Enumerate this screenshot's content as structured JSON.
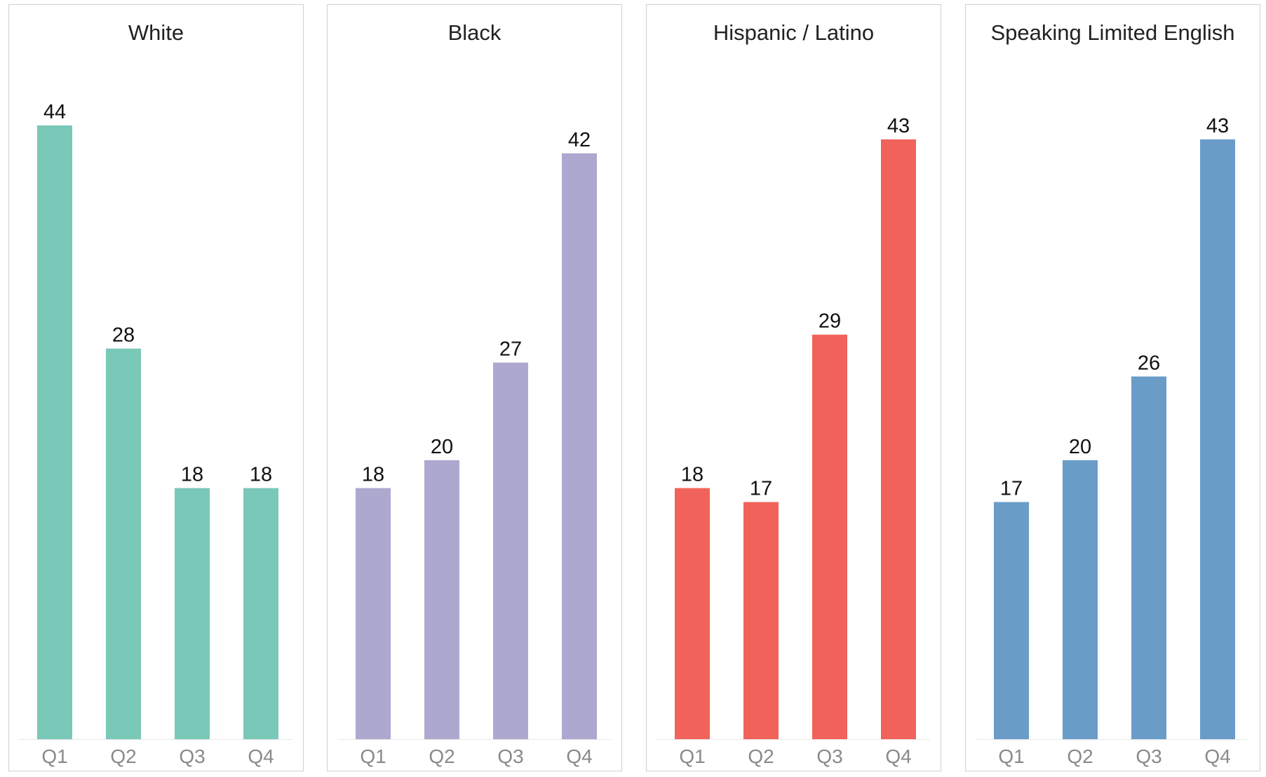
{
  "chart_data": [
    {
      "type": "bar",
      "title": "White",
      "categories": [
        "Q1",
        "Q2",
        "Q3",
        "Q4"
      ],
      "values": [
        44,
        28,
        18,
        18
      ],
      "color": "#7ac8b8",
      "ylim": [
        0,
        44
      ]
    },
    {
      "type": "bar",
      "title": "Black",
      "categories": [
        "Q1",
        "Q2",
        "Q3",
        "Q4"
      ],
      "values": [
        18,
        20,
        27,
        42
      ],
      "color": "#ada8cf",
      "ylim": [
        0,
        44
      ]
    },
    {
      "type": "bar",
      "title": "Hispanic / Latino",
      "categories": [
        "Q1",
        "Q2",
        "Q3",
        "Q4"
      ],
      "values": [
        18,
        17,
        29,
        43
      ],
      "color": "#f1635a",
      "ylim": [
        0,
        44
      ]
    },
    {
      "type": "bar",
      "title": "Speaking Limited English",
      "categories": [
        "Q1",
        "Q2",
        "Q3",
        "Q4"
      ],
      "values": [
        17,
        20,
        26,
        43
      ],
      "color": "#6a9cc8",
      "ylim": [
        0,
        44
      ]
    }
  ]
}
